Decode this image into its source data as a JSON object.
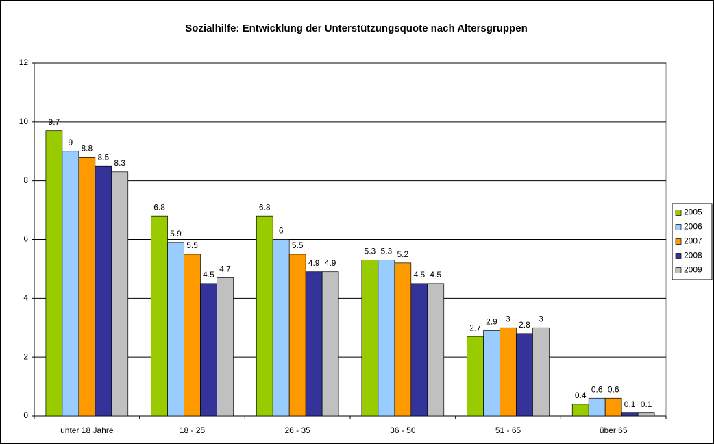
{
  "chart_data": {
    "type": "bar",
    "title": "Sozialhilfe: Entwicklung der Unterstützungsquote nach Altersgruppen",
    "categories": [
      "unter 18 Jahre",
      "18 - 25",
      "26 - 35",
      "36 - 50",
      "51 - 65",
      "über 65"
    ],
    "series": [
      {
        "name": "2005",
        "color": "#99cc00",
        "values": [
          9.7,
          6.8,
          6.8,
          5.3,
          2.7,
          0.4
        ]
      },
      {
        "name": "2006",
        "color": "#99ccff",
        "values": [
          9,
          5.9,
          6,
          5.3,
          2.9,
          0.6
        ]
      },
      {
        "name": "2007",
        "color": "#ff9900",
        "values": [
          8.8,
          5.5,
          5.5,
          5.2,
          3,
          0.6
        ]
      },
      {
        "name": "2008",
        "color": "#333399",
        "values": [
          8.5,
          4.5,
          4.9,
          4.5,
          2.8,
          0.1
        ]
      },
      {
        "name": "2009",
        "color": "#c0c0c0",
        "values": [
          8.3,
          4.7,
          4.9,
          4.5,
          3,
          0.1
        ]
      }
    ],
    "ylim": [
      0,
      12
    ],
    "yticks": [
      0,
      2,
      4,
      6,
      8,
      10,
      12
    ],
    "grid": true,
    "legend": "right"
  }
}
